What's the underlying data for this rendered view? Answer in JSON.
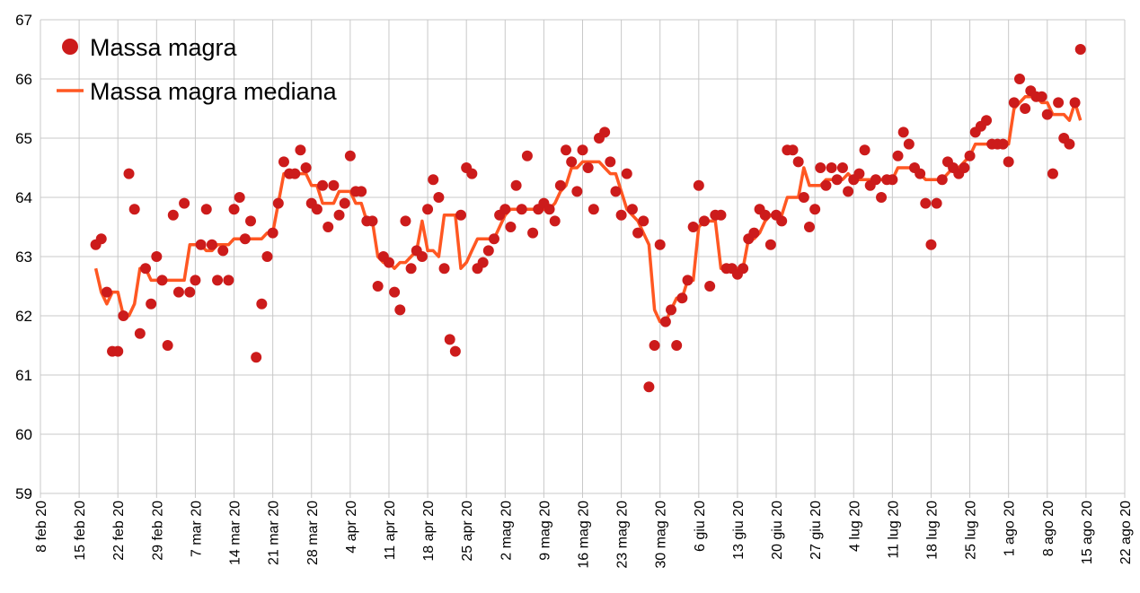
{
  "chart_data": {
    "type": "scatter",
    "title": "",
    "xlabel": "",
    "ylabel": "",
    "ylim": [
      59,
      67
    ],
    "yticks": [
      "59",
      "60",
      "61",
      "62",
      "63",
      "64",
      "65",
      "66",
      "67"
    ],
    "x_start_label": "8 feb 20",
    "x_day_range": [
      0,
      196
    ],
    "xticks": [
      "8 feb 20",
      "15 feb 20",
      "22 feb 20",
      "29 feb 20",
      "7 mar 20",
      "14 mar 20",
      "21 mar 20",
      "28 mar 20",
      "4 apr 20",
      "11 apr 20",
      "18 apr 20",
      "25 apr 20",
      "2 mag 20",
      "9 mag 20",
      "16 mag 20",
      "23 mag 20",
      "30 mag 20",
      "6 giu 20",
      "13 giu 20",
      "20 giu 20",
      "27 giu 20",
      "4 lug 20",
      "11 lug 20",
      "18 lug 20",
      "25 lug 20",
      "1 ago 20",
      "8 ago 20",
      "15 ago 20",
      "22 ago 20"
    ],
    "grid": true,
    "legend_position": "top-left",
    "series": [
      {
        "name": "Massa magra",
        "kind": "points",
        "color": "#cc1b1b",
        "first_day": 10,
        "values": [
          63.2,
          63.3,
          62.4,
          61.4,
          61.4,
          62.0,
          64.4,
          63.8,
          61.7,
          62.8,
          62.2,
          63.0,
          62.6,
          61.5,
          63.7,
          62.4,
          63.9,
          62.4,
          62.6,
          63.2,
          63.8,
          63.2,
          62.6,
          63.1,
          62.6,
          63.8,
          64.0,
          63.3,
          63.6,
          61.3,
          62.2,
          63.0,
          63.4,
          63.9,
          64.6,
          64.4,
          64.4,
          64.8,
          64.5,
          63.9,
          63.8,
          64.2,
          63.5,
          64.2,
          63.7,
          63.9,
          64.7,
          64.1,
          64.1,
          63.6,
          63.6,
          62.5,
          63.0,
          62.9,
          62.4,
          62.1,
          63.6,
          62.8,
          63.1,
          63.0,
          63.8,
          64.3,
          64.0,
          62.8,
          61.6,
          61.4,
          63.7,
          64.5,
          64.4,
          62.8,
          62.9,
          63.1,
          63.3,
          63.7,
          63.8,
          63.5,
          64.2,
          63.8,
          64.7,
          63.4,
          63.8,
          63.9,
          63.8,
          63.6,
          64.2,
          64.8,
          64.6,
          64.1,
          64.8,
          64.5,
          63.8,
          65.0,
          65.1,
          64.6,
          64.1,
          63.7,
          64.4,
          63.8,
          63.4,
          63.6,
          60.8,
          61.5,
          63.2,
          61.9,
          62.1,
          61.5,
          62.3,
          62.6,
          63.5,
          64.2,
          63.6,
          62.5,
          63.7,
          63.7,
          62.8,
          62.8,
          62.7,
          62.8,
          63.3,
          63.4,
          63.8,
          63.7,
          63.2,
          63.7,
          63.6,
          64.8,
          64.8,
          64.6,
          64.0,
          63.5,
          63.8,
          64.5,
          64.2,
          64.5,
          64.3,
          64.5,
          64.1,
          64.3,
          64.4,
          64.8,
          64.2,
          64.3,
          64.0,
          64.3,
          64.3,
          64.7,
          65.1,
          64.9,
          64.5,
          64.4,
          63.9,
          63.2,
          63.9,
          64.3,
          64.6,
          64.5,
          64.4,
          64.5,
          64.7,
          65.1,
          65.2,
          65.3,
          64.9,
          64.9,
          64.9,
          64.6,
          65.6,
          66.0,
          65.5,
          65.8,
          65.7,
          65.7,
          65.4,
          64.4,
          65.6,
          65.0,
          64.9,
          65.6,
          66.5
        ]
      },
      {
        "name": "Massa magra mediana",
        "kind": "line",
        "color": "#ff5722",
        "source_series": "Massa magra",
        "median_window_days": 7
      }
    ]
  }
}
